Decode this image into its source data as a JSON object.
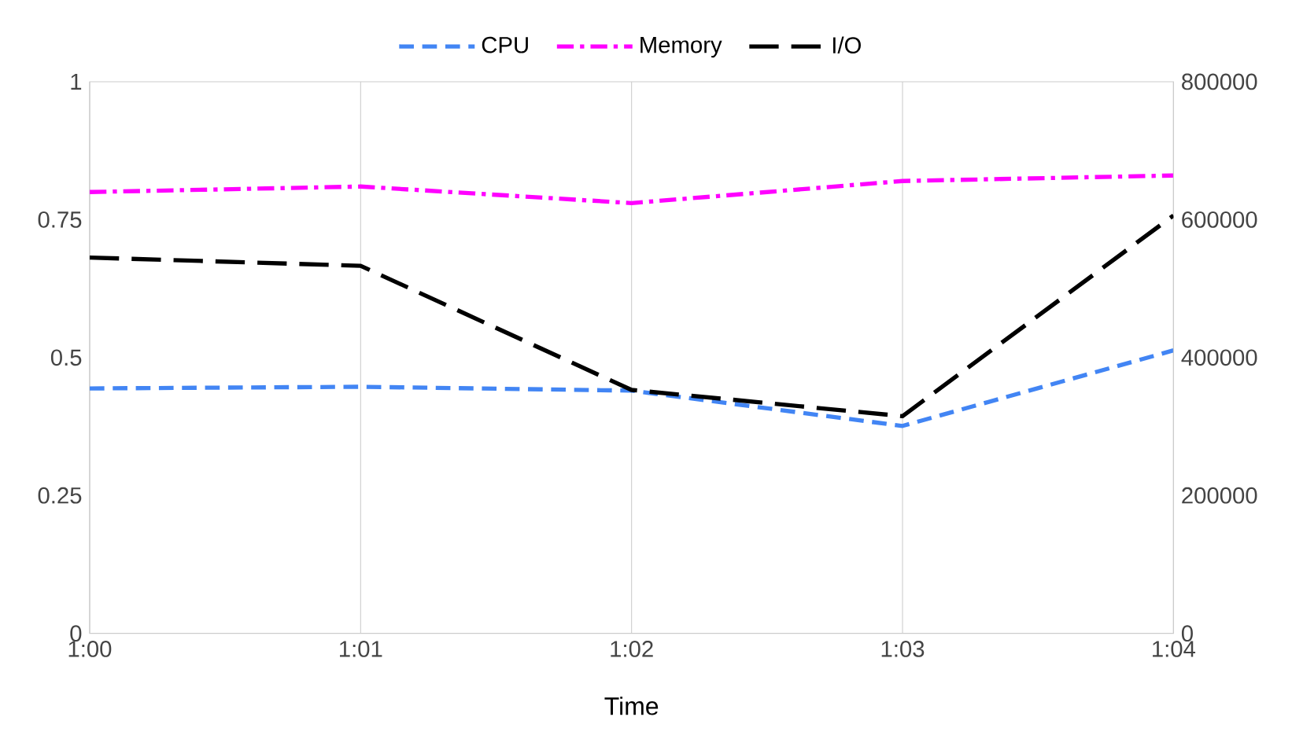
{
  "chart_data": {
    "type": "line",
    "xlabel": "Time",
    "categories": [
      "1:00",
      "1:01",
      "1:02",
      "1:03",
      "1:04"
    ],
    "series": [
      {
        "name": "CPU",
        "color": "#4285f4",
        "line_style": "dashed",
        "values": [
          0.444,
          0.447,
          0.44,
          0.376,
          0.513
        ]
      },
      {
        "name": "Memory",
        "color": "#ff00ff",
        "line_style": "dashdot",
        "values": [
          0.8,
          0.81,
          0.78,
          0.82,
          0.83
        ]
      },
      {
        "name": "I/O",
        "color": "#000000",
        "line_style": "longdashed",
        "axis": "y2",
        "values": [
          545000,
          533000,
          353000,
          315000,
          606000
        ]
      }
    ],
    "ylim": [
      0,
      1
    ],
    "yticks": [
      0,
      0.25,
      0.5,
      0.75,
      1
    ],
    "y2lim": [
      0,
      800000
    ],
    "y2ticks": [
      0,
      200000,
      400000,
      600000,
      800000
    ],
    "grid": "x",
    "legend": "top",
    "marker": "none"
  }
}
